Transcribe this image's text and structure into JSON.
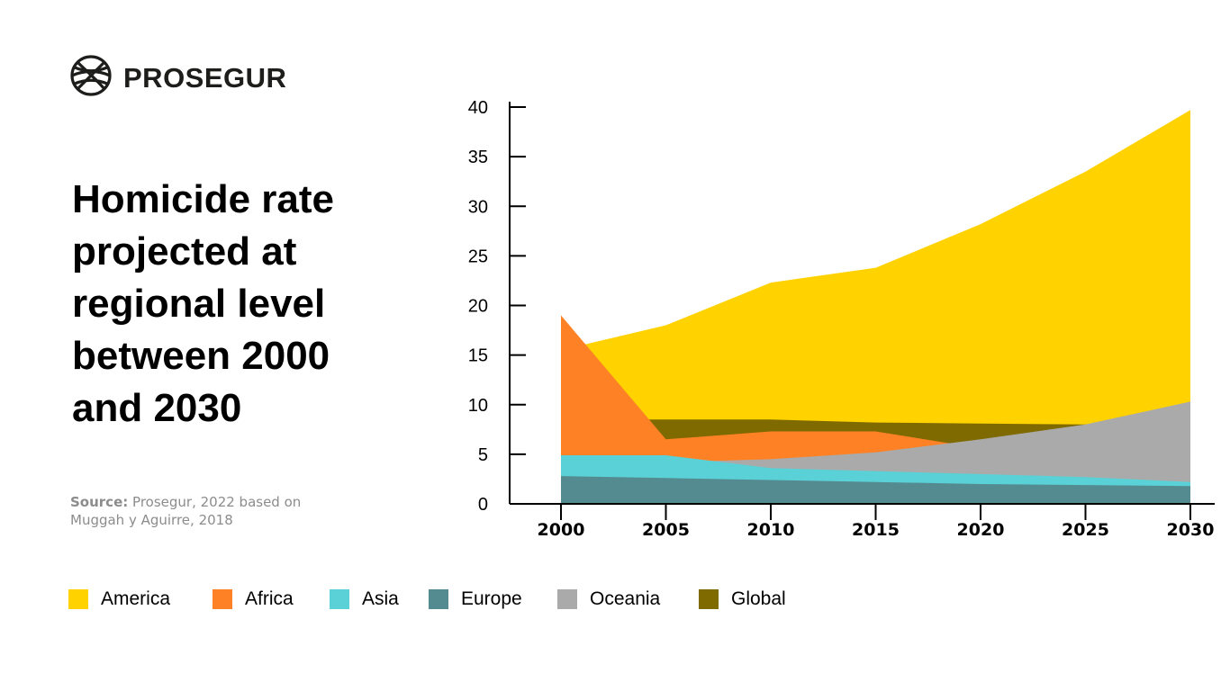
{
  "brand": {
    "name": "PROSEGUR",
    "logo_icon": "globe-icon"
  },
  "title": "Homicide rate projected at regional level between 2000 and 2030",
  "source": {
    "label": "Source:",
    "text": "Prosegur, 2022 based on Muggah y Aguirre, 2018"
  },
  "chart_data": {
    "type": "area",
    "title": "",
    "xlabel": "",
    "ylabel": "",
    "x": [
      2000,
      2005,
      2010,
      2015,
      2020,
      2025,
      2030
    ],
    "xlim": [
      2000,
      2030
    ],
    "ylim": [
      0,
      40
    ],
    "yticks": [
      0,
      5,
      10,
      15,
      20,
      25,
      30,
      35,
      40
    ],
    "grid": false,
    "legend_position": "bottom",
    "series": [
      {
        "name": "America",
        "color": "#FFD200",
        "values": [
          15.5,
          18,
          22.3,
          23.8,
          28.2,
          33.5,
          39.7
        ]
      },
      {
        "name": "Global",
        "color": "#7F6A00",
        "values": [
          8.5,
          8.5,
          8.5,
          8.2,
          8.1,
          8.0,
          7.9
        ]
      },
      {
        "name": "Africa",
        "color": "#FF8125",
        "values": [
          19,
          6.5,
          7.3,
          7.3,
          5.6,
          3.8,
          2.4
        ]
      },
      {
        "name": "Oceania",
        "color": "#AAAAAA",
        "values": [
          4.0,
          4.2,
          4.5,
          5.2,
          6.5,
          8.0,
          10.3
        ]
      },
      {
        "name": "Asia",
        "color": "#5AD1D6",
        "values": [
          4.9,
          4.9,
          3.6,
          3.3,
          3.0,
          2.7,
          2.2
        ]
      },
      {
        "name": "Europe",
        "color": "#548B91",
        "values": [
          2.8,
          2.6,
          2.4,
          2.2,
          2.0,
          1.9,
          1.8
        ]
      }
    ]
  },
  "legend": [
    {
      "name": "America",
      "color": "#FFD200"
    },
    {
      "name": "Africa",
      "color": "#FF8125"
    },
    {
      "name": "Asia",
      "color": "#5AD1D6"
    },
    {
      "name": "Europe",
      "color": "#548B91"
    },
    {
      "name": "Oceania",
      "color": "#AAAAAA"
    },
    {
      "name": "Global",
      "color": "#7F6A00"
    }
  ]
}
